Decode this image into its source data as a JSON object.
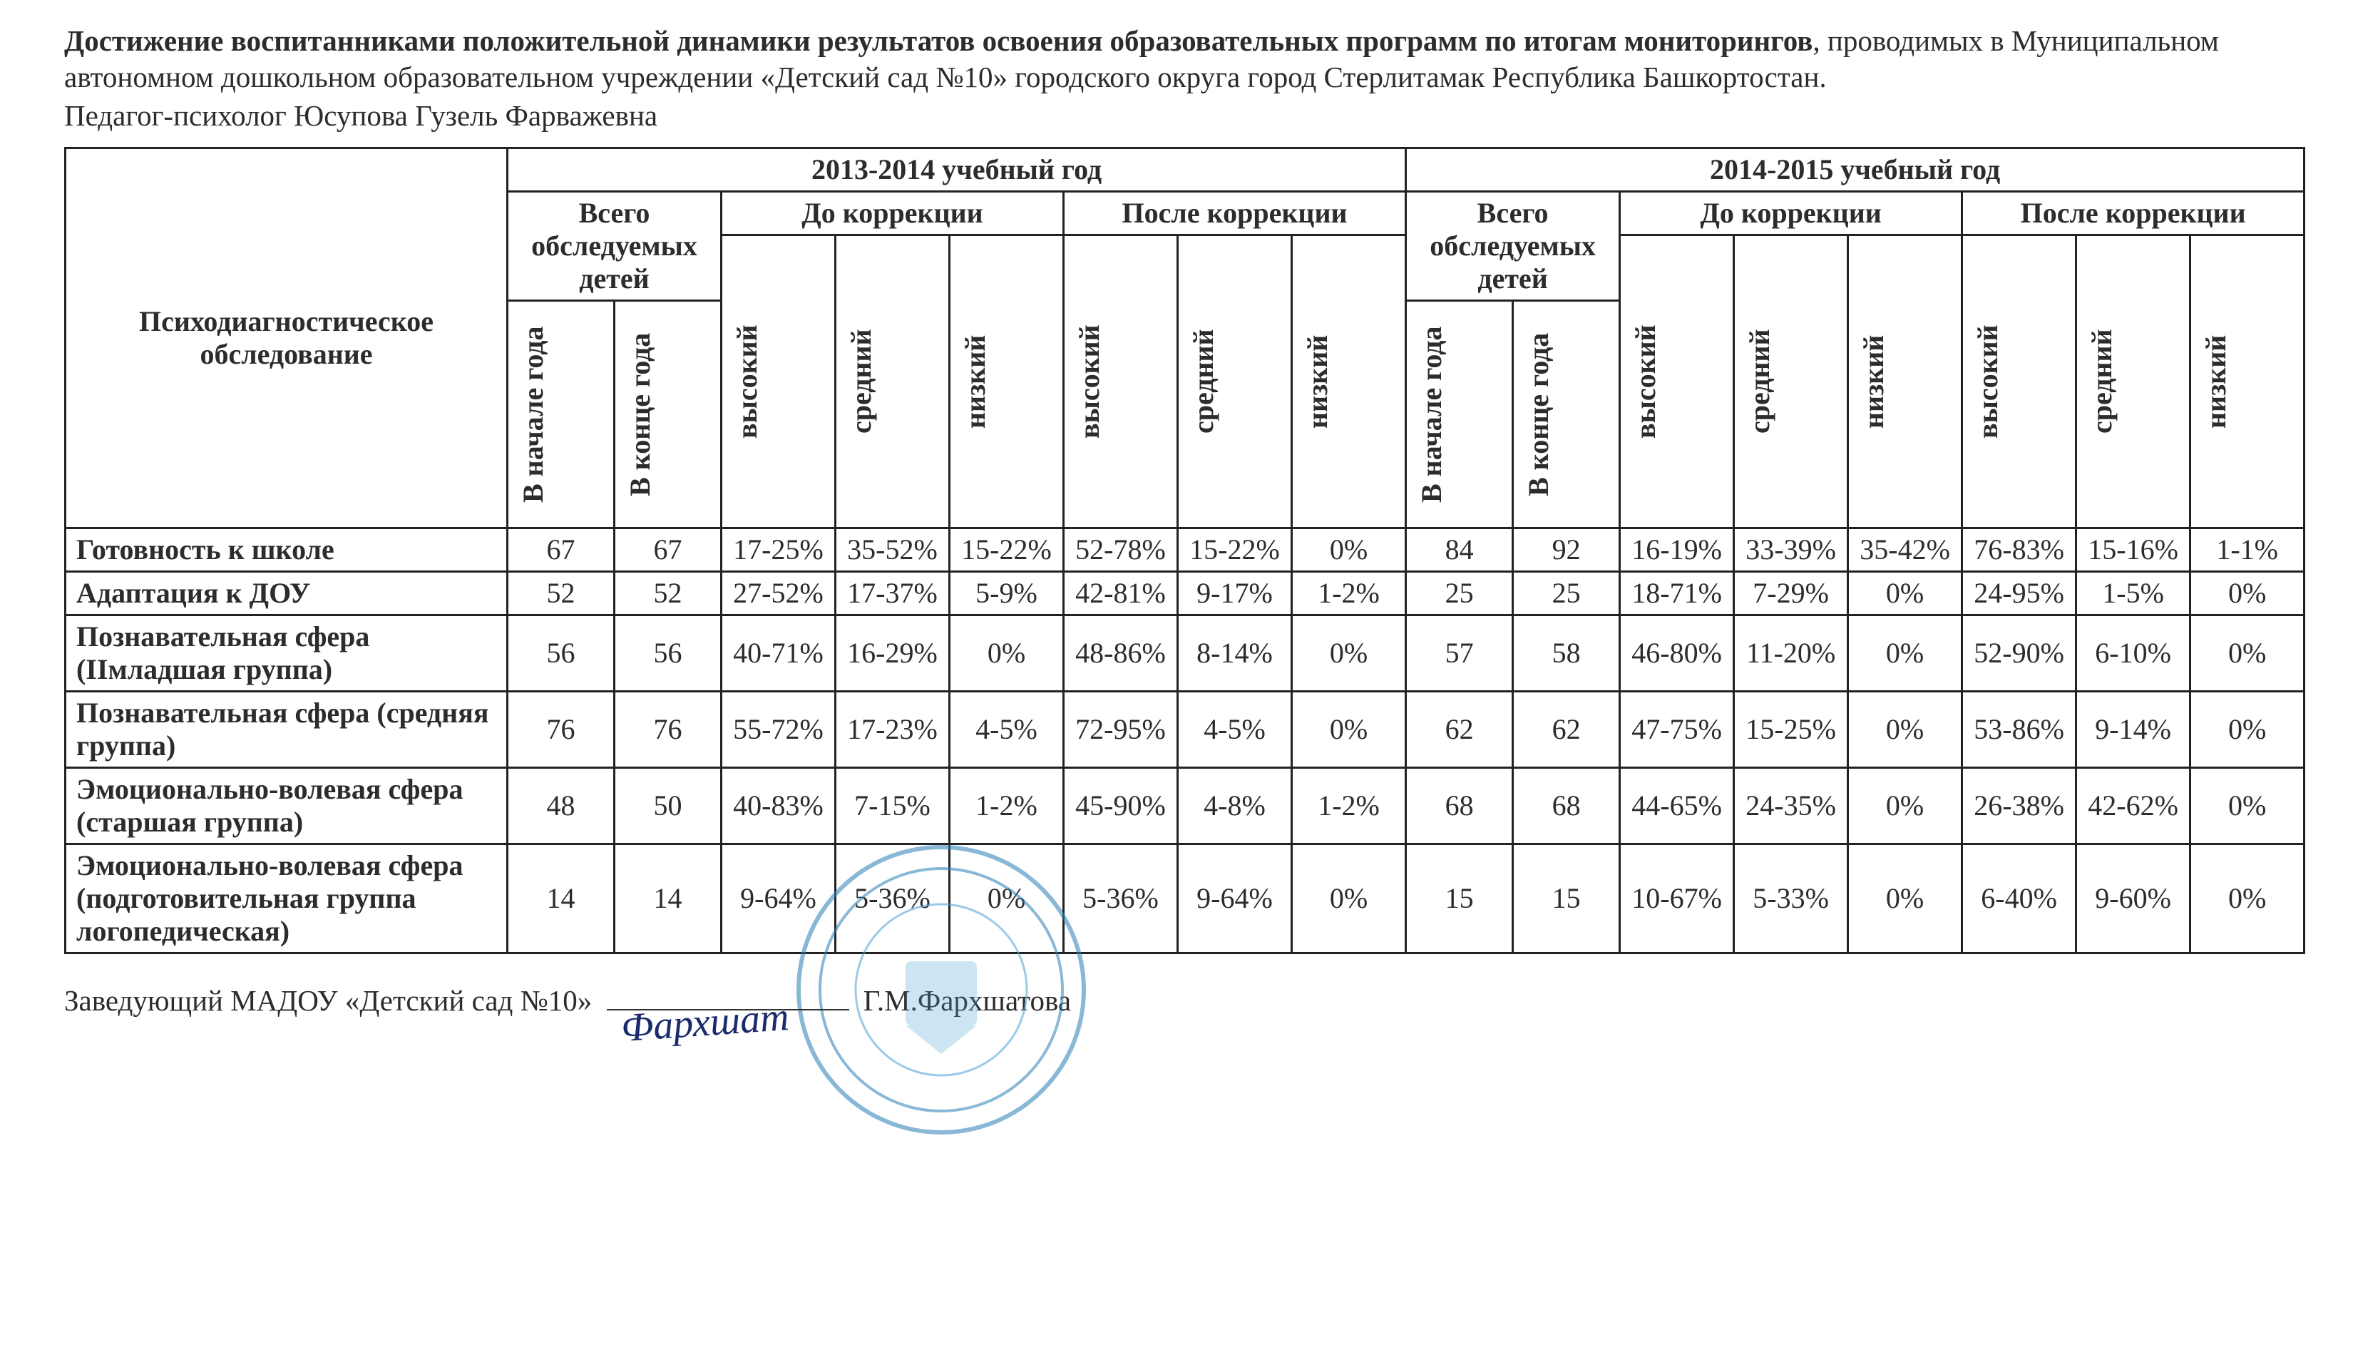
{
  "header": {
    "title_bold": "Достижение воспитанниками положительной динамики результатов освоения образовательных программ по итогам мониторингов",
    "title_rest": ", проводимых в Муниципальном автономном дошкольном образовательном учреждении «Детский сад №10» городского округа город Стерлитамак Республика Башкортостан.",
    "subtitle": "Педагог-психолог Юсупова Гузель Фарважевна"
  },
  "table": {
    "row_header": "Психодиагностическое обследование",
    "year1": "2013-2014 учебный год",
    "year2": "2014-2015 учебный год",
    "total_children": "Всего обследуемых детей",
    "before_corr": "До коррекции",
    "after_corr": "После коррекции",
    "start_year": "В начале года",
    "end_year": "В конце года",
    "high": "высокий",
    "mid": "средний",
    "low": "низкий",
    "rows": [
      {
        "label": "Готовность к школе",
        "c": [
          "67",
          "67",
          "17-25%",
          "35-52%",
          "15-22%",
          "52-78%",
          "15-22%",
          "0%",
          "84",
          "92",
          "16-19%",
          "33-39%",
          "35-42%",
          "76-83%",
          "15-16%",
          "1-1%"
        ]
      },
      {
        "label": "Адаптация к ДОУ",
        "c": [
          "52",
          "52",
          "27-52%",
          "17-37%",
          "5-9%",
          "42-81%",
          "9-17%",
          "1-2%",
          "25",
          "25",
          "18-71%",
          "7-29%",
          "0%",
          "24-95%",
          "1-5%",
          "0%"
        ]
      },
      {
        "label": "Познавательная сфера (IIмладшая группа)",
        "c": [
          "56",
          "56",
          "40-71%",
          "16-29%",
          "0%",
          "48-86%",
          "8-14%",
          "0%",
          "57",
          "58",
          "46-80%",
          "11-20%",
          "0%",
          "52-90%",
          "6-10%",
          "0%"
        ]
      },
      {
        "label": "Познавательная сфера (средняя группа)",
        "c": [
          "76",
          "76",
          "55-72%",
          "17-23%",
          "4-5%",
          "72-95%",
          "4-5%",
          "0%",
          "62",
          "62",
          "47-75%",
          "15-25%",
          "0%",
          "53-86%",
          "9-14%",
          "0%"
        ]
      },
      {
        "label": "Эмоционально-волевая сфера (старшая группа)",
        "c": [
          "48",
          "50",
          "40-83%",
          "7-15%",
          "1-2%",
          "45-90%",
          "4-8%",
          "1-2%",
          "68",
          "68",
          "44-65%",
          "24-35%",
          "0%",
          "26-38%",
          "42-62%",
          "0%"
        ]
      },
      {
        "label": "Эмоционально-волевая сфера (подготовительная группа логопедическая)",
        "c": [
          "14",
          "14",
          "9-64%",
          "5-36%",
          "0%",
          "5-36%",
          "9-64%",
          "0%",
          "15",
          "15",
          "10-67%",
          "5-33%",
          "0%",
          "6-40%",
          "9-60%",
          "0%"
        ]
      }
    ]
  },
  "footer": {
    "line_prefix": "Заведующий МАДОУ «Детский сад №10»",
    "signer": "Г.М.Фархшатова",
    "stamp_color": "#2a7fb8",
    "stamp_inner": "#4a9fd4",
    "signature_scribble": "Фархшат"
  }
}
